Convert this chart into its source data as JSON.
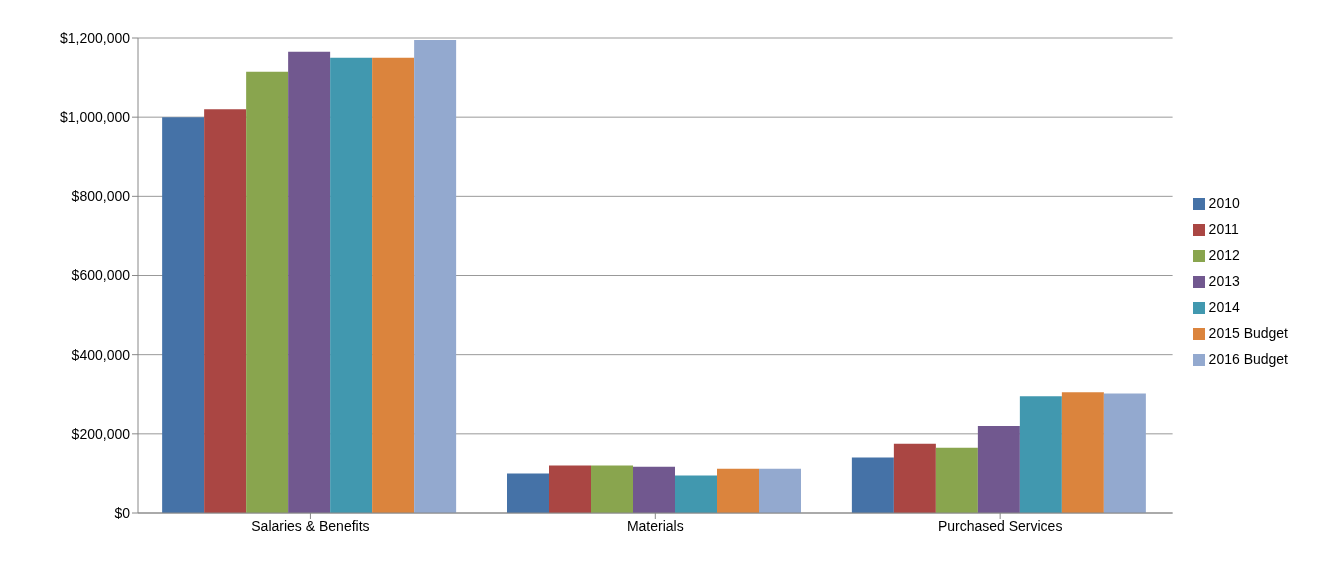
{
  "chart_data": {
    "type": "bar",
    "categories": [
      "Salaries & Benefits",
      "Materials",
      "Purchased Services"
    ],
    "series": [
      {
        "name": "2010",
        "color": "#4572a7",
        "values": [
          1000000,
          100000,
          140000
        ]
      },
      {
        "name": "2011",
        "color": "#aa4643",
        "values": [
          1020000,
          120000,
          175000
        ]
      },
      {
        "name": "2012",
        "color": "#89a54e",
        "values": [
          1115000,
          120000,
          165000
        ]
      },
      {
        "name": "2013",
        "color": "#71588f",
        "values": [
          1165000,
          117000,
          220000
        ]
      },
      {
        "name": "2014",
        "color": "#4198af",
        "values": [
          1150000,
          95000,
          295000
        ]
      },
      {
        "name": "2015 Budget",
        "color": "#db843d",
        "values": [
          1150000,
          112000,
          305000
        ]
      },
      {
        "name": "2016 Budget",
        "color": "#93a9cf",
        "values": [
          1195000,
          112000,
          302000
        ]
      }
    ],
    "ylim": [
      0,
      1200000
    ],
    "yticks": [
      {
        "value": 0,
        "label": "$0"
      },
      {
        "value": 200000,
        "label": "$200,000"
      },
      {
        "value": 400000,
        "label": "$400,000"
      },
      {
        "value": 600000,
        "label": "$600,000"
      },
      {
        "value": 800000,
        "label": "$800,000"
      },
      {
        "value": 1000000,
        "label": "$1,000,000"
      },
      {
        "value": 1200000,
        "label": "$1,200,000"
      }
    ],
    "grid": "y",
    "legend": "right"
  }
}
